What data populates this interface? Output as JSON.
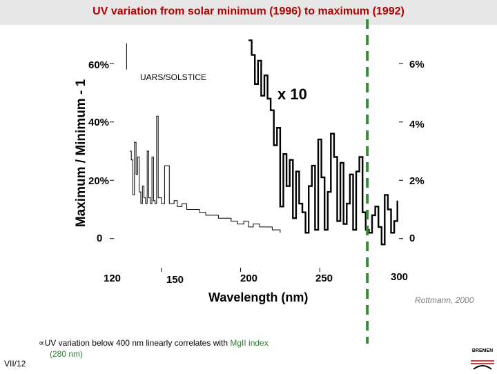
{
  "title": "UV variation from solar minimum (1996) to maximum (1992)",
  "slide_number": "VII/12",
  "bullet": {
    "symbol": "∝",
    "text_main": "UV variation below 400 nm  linearly correlates with ",
    "text_highlight": "MgII index",
    "text_tail": "(280 nm)"
  },
  "credit": "Rottmann, 2000",
  "logo_text": "BREMEN",
  "colors": {
    "title": "#b00000",
    "marker": "#3a8a3a",
    "highlight": "#2e7d32",
    "band": "#e7e7e7"
  },
  "chart_data": {
    "type": "line",
    "title": "",
    "xlabel": "Wavelength (nm)",
    "ylabel": "Maximum / Minimum - 1",
    "xlim": [
      120,
      300
    ],
    "ylim_left": [
      -10,
      70
    ],
    "ylim_right": [
      -1,
      7
    ],
    "x_ticks": [
      "120",
      "150",
      "200",
      "250",
      "300"
    ],
    "y_ticks_left": [
      "0",
      "20%",
      "40%",
      "60%"
    ],
    "y_ticks_right": [
      "0",
      "2%",
      "4%",
      "6%"
    ],
    "annotations": [
      "UARS/SOLSTICE",
      "x 10"
    ],
    "marker_line_x": 280,
    "series": [
      {
        "name": "UARS/SOLSTICE",
        "axis": "left",
        "x": [
          130,
          131,
          132,
          133,
          134,
          135,
          136,
          137,
          138,
          139,
          140,
          141,
          142,
          143,
          144,
          145,
          146,
          147,
          148,
          150,
          152,
          155,
          158,
          160,
          163,
          166,
          170,
          174,
          178,
          182,
          186,
          190,
          194,
          198,
          200,
          202,
          205,
          208,
          212,
          216,
          220,
          225
        ],
        "values": [
          30,
          27,
          15,
          33,
          22,
          28,
          16,
          12,
          18,
          14,
          12,
          30,
          14,
          12,
          28,
          13,
          12,
          42,
          14,
          12,
          25,
          12,
          13,
          11,
          12,
          10,
          10,
          9,
          8,
          8,
          7,
          7,
          6,
          5,
          5,
          6,
          4,
          5,
          4,
          4,
          3,
          2
        ]
      },
      {
        "name": "x 10",
        "axis": "right",
        "x": [
          205,
          207,
          209,
          211,
          213,
          215,
          217,
          219,
          221,
          223,
          225,
          227,
          229,
          231,
          233,
          235,
          237,
          239,
          241,
          243,
          245,
          247,
          249,
          251,
          253,
          255,
          257,
          259,
          261,
          263,
          265,
          267,
          269,
          271,
          273,
          275,
          277,
          279,
          281,
          283,
          285,
          287,
          289,
          291,
          293,
          295,
          297,
          299
        ],
        "values": [
          6.8,
          6.3,
          5.3,
          6.1,
          4.9,
          5.6,
          4.8,
          4.4,
          3.2,
          3.8,
          1.1,
          2.9,
          1.8,
          2.7,
          0.7,
          2.3,
          1.2,
          0.9,
          0.2,
          1.8,
          2.5,
          0.3,
          3.4,
          2.1,
          0.3,
          1.6,
          3.6,
          2.8,
          0.6,
          2.6,
          0.5,
          1.2,
          2.2,
          0.3,
          2.3,
          2.8,
          0.9,
          0.3,
          0.2,
          0.8,
          1.1,
          0.4,
          -0.2,
          1.5,
          1.0,
          0.2,
          0.6,
          1.3
        ]
      }
    ]
  }
}
